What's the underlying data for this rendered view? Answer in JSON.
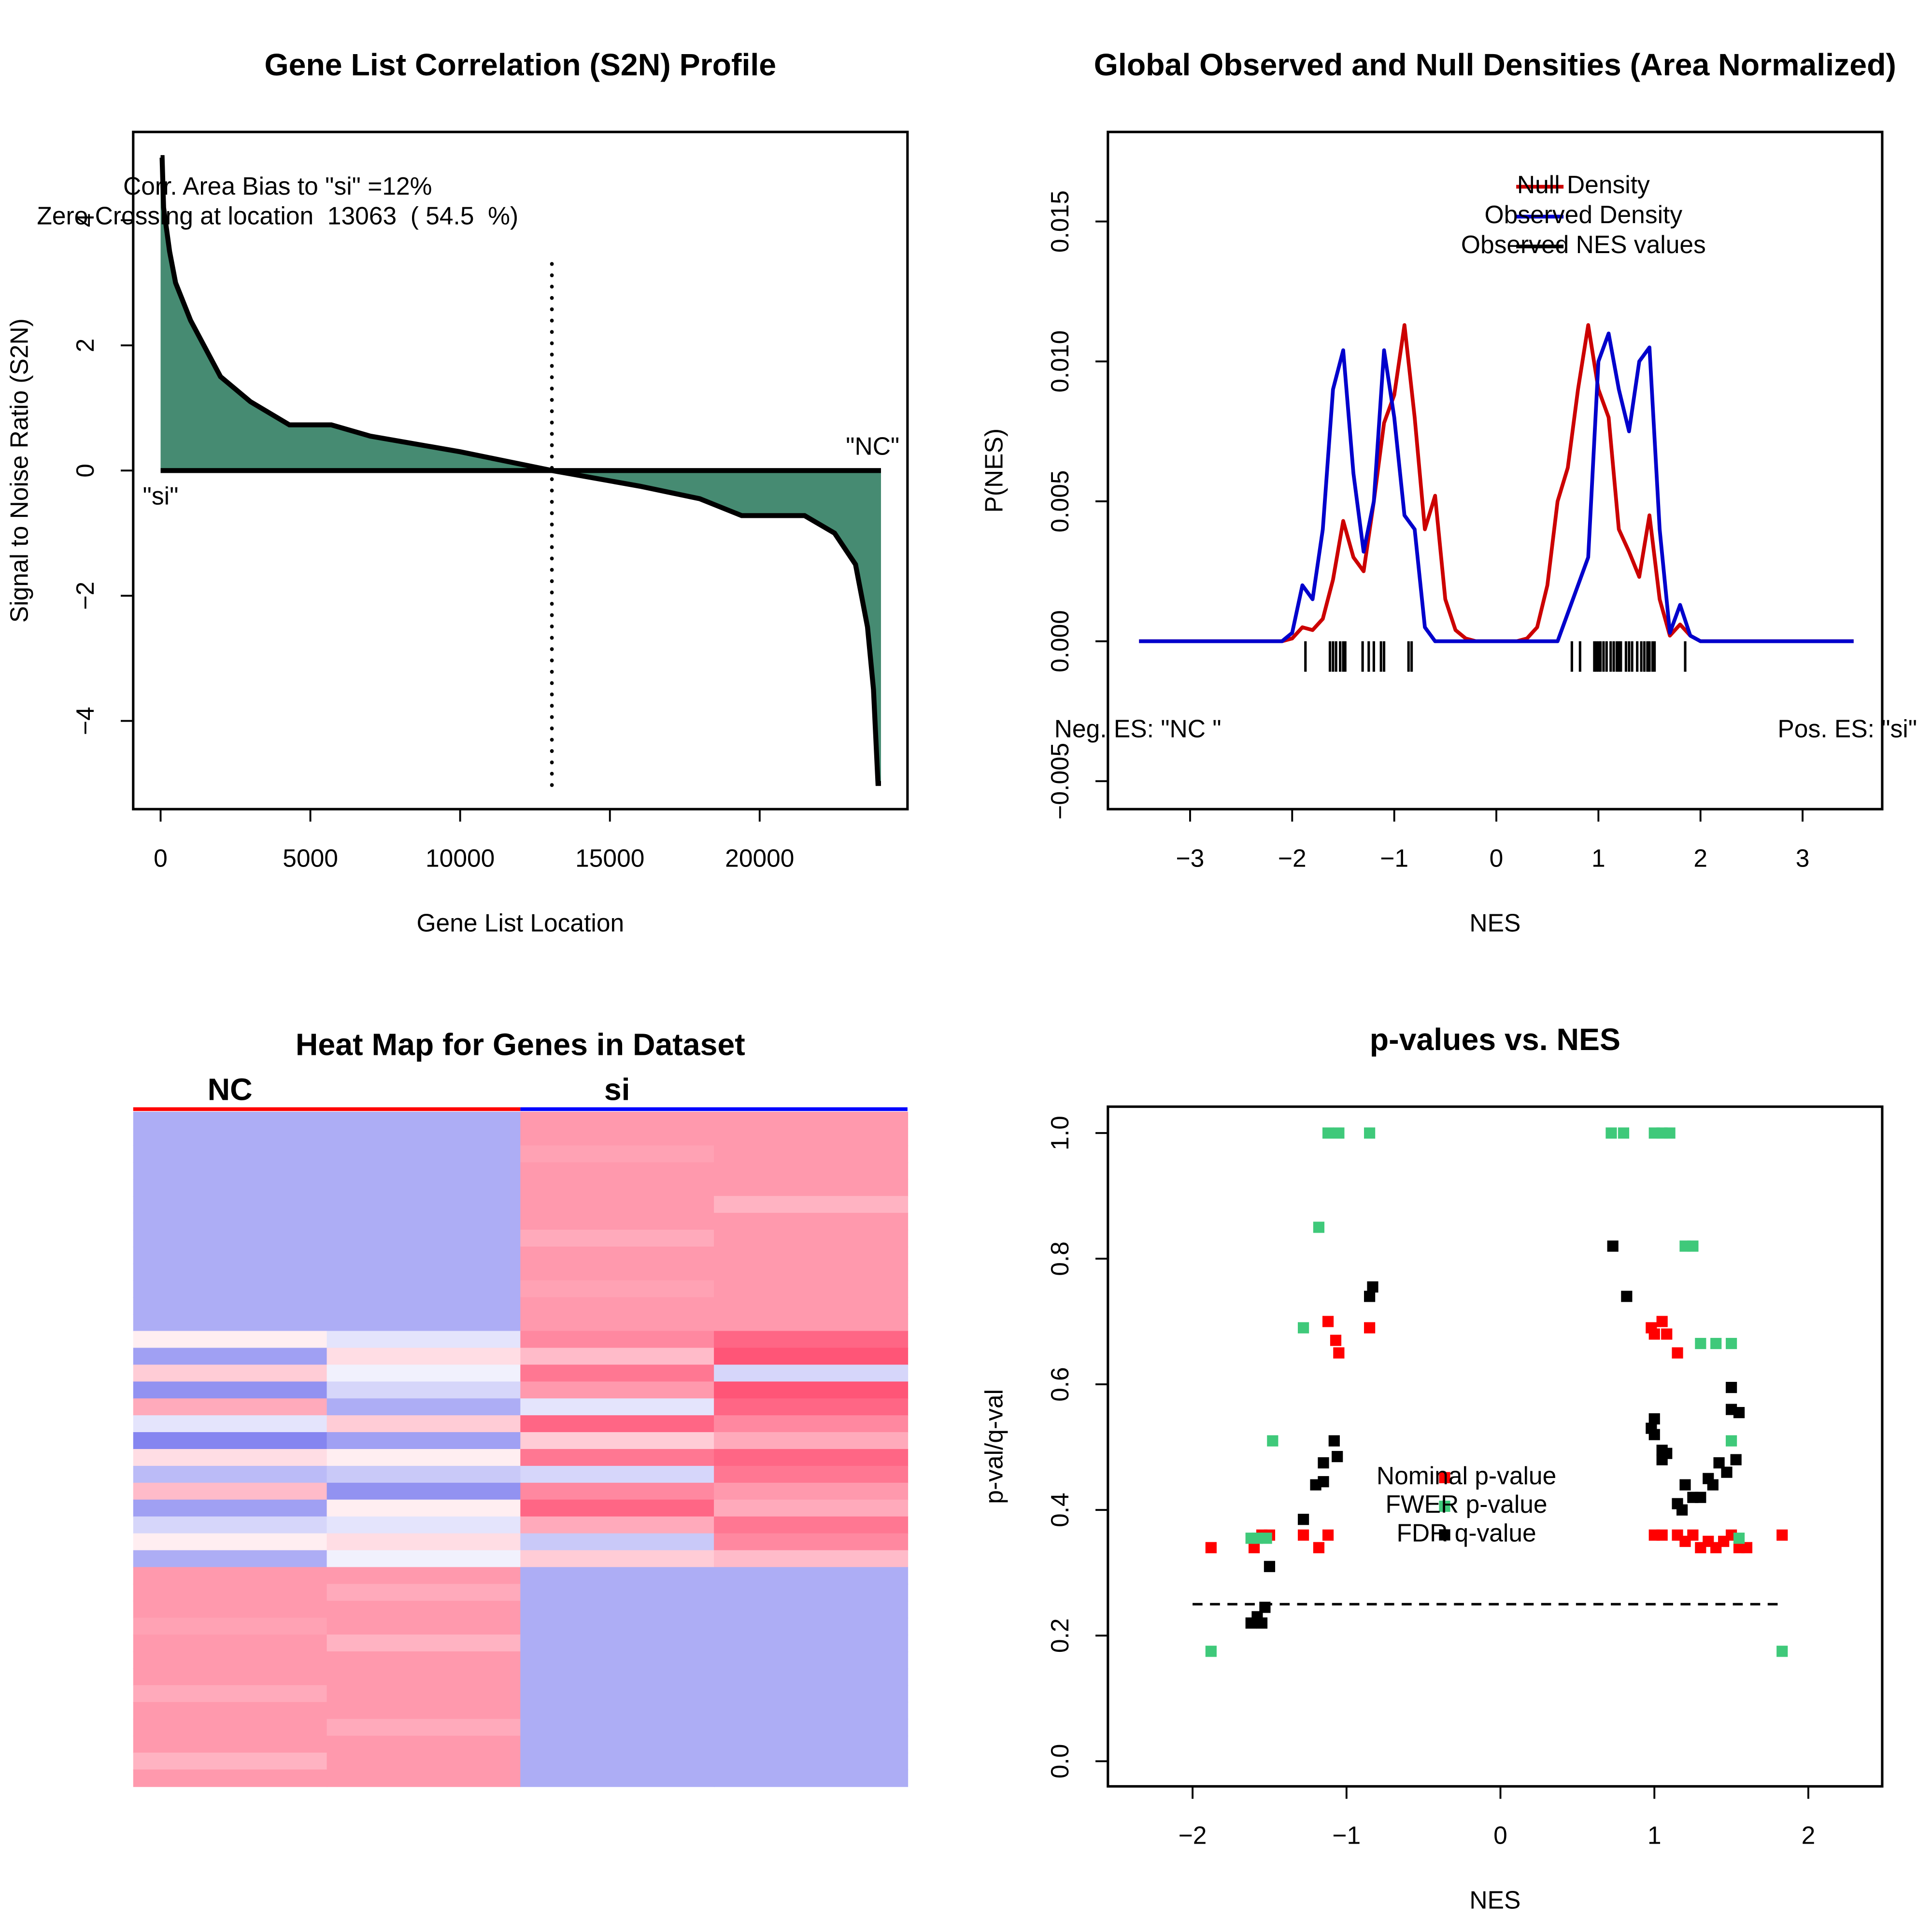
{
  "chart_data": [
    {
      "type": "area",
      "title": "Gene List Correlation (S2N) Profile",
      "x_label": "Gene List Location",
      "y_label": "Signal to Noise Ratio (S2N)",
      "annotations": [
        "Corr. Area Bias to \"si\" =12%",
        "Zero Crossing at location  13063  ( 54.5  %)",
        "\"si\"",
        "\"NC\""
      ],
      "x": [
        0,
        50,
        100,
        300,
        500,
        1000,
        2000,
        3000,
        4300,
        5700,
        7000,
        10000,
        13063,
        16000,
        18000,
        19400,
        21500,
        22500,
        23200,
        23600,
        23800,
        23950,
        24050
      ],
      "values": [
        5,
        5,
        4.2,
        3.5,
        3,
        2.4,
        1.5,
        1.1,
        0.73,
        0.73,
        0.55,
        0.3,
        0,
        -0.25,
        -0.45,
        -0.72,
        -0.72,
        -1,
        -1.5,
        -2.5,
        -3.5,
        -5,
        -5
      ],
      "color": "#468b72",
      "vline": 13063,
      "xlim": [
        -915,
        24935
      ],
      "xticks": [
        0,
        5000,
        10000,
        15000,
        20000
      ],
      "ylim": [
        -5.41,
        5.41
      ],
      "yticks": [
        {
          "value": -4,
          "label": "−4"
        },
        {
          "value": -2,
          "label": "−2"
        },
        0,
        2,
        4
      ]
    },
    {
      "type": "line",
      "title": "Global Observed and Null Densities (Area Normalized)",
      "x_label": "NES",
      "y_label": "P(NES)",
      "annotations": [
        "Neg. ES: \"NC \"",
        "Pos. ES: \"si\""
      ],
      "legend": "top-right",
      "x": [
        -3.5,
        -2.2,
        -2.1,
        -2,
        -1.9,
        -1.8,
        -1.7,
        -1.6,
        -1.5,
        -1.4,
        -1.3,
        -1.2,
        -1.1,
        -1,
        -0.9,
        -0.8,
        -0.7,
        -0.6,
        -0.5,
        -0.4,
        -0.3,
        -0.2,
        0.2,
        0.3,
        0.4,
        0.5,
        0.6,
        0.7,
        0.8,
        0.9,
        1,
        1.1,
        1.2,
        1.3,
        1.4,
        1.5,
        1.6,
        1.7,
        1.8,
        1.9,
        2,
        2.1,
        3.5
      ],
      "series": [
        {
          "name": "Null Density",
          "color": "#cc0000",
          "values": [
            0,
            0,
            0,
            0.0001,
            0.0005,
            0.0004,
            0.0008,
            0.0022,
            0.0043,
            0.003,
            0.0025,
            0.005,
            0.0078,
            0.0088,
            0.0113,
            0.008,
            0.004,
            0.0052,
            0.0015,
            0.0004,
            0.0001,
            0,
            0,
            0.0001,
            0.0005,
            0.002,
            0.005,
            0.0062,
            0.009,
            0.0113,
            0.009,
            0.008,
            0.004,
            0.0032,
            0.0023,
            0.0045,
            0.0015,
            0.0002,
            0.0006,
            0.0002,
            0,
            0,
            0
          ]
        },
        {
          "name": "Observed Density",
          "color": "#0000cc",
          "values": [
            0,
            0,
            0,
            0.0003,
            0.002,
            0.0015,
            0.004,
            0.009,
            0.0104,
            0.006,
            0.0032,
            0.005,
            0.0104,
            0.008,
            0.0045,
            0.004,
            0.0005,
            0,
            0,
            0,
            0,
            0,
            0,
            0,
            0,
            0,
            0,
            0.001,
            0.002,
            0.003,
            0.01,
            0.011,
            0.009,
            0.0075,
            0.01,
            0.0105,
            0.004,
            0.0003,
            0.0013,
            0.0002,
            0,
            0,
            0
          ]
        },
        {
          "name": "Observed NES values",
          "color": "#000000",
          "x_values": [
            -1.87,
            -1.63,
            -1.6,
            -1.57,
            -1.53,
            -1.5,
            -1.48,
            -1.31,
            -1.25,
            -1.2,
            -1.13,
            -1.1,
            -0.86,
            -0.83,
            0.74,
            0.82,
            0.96,
            0.98,
            1.0,
            1.02,
            1.05,
            1.08,
            1.12,
            1.15,
            1.18,
            1.2,
            1.22,
            1.27,
            1.3,
            1.33,
            1.38,
            1.42,
            1.45,
            1.48,
            1.5,
            1.53,
            1.55,
            1.85
          ]
        }
      ],
      "xlim": [
        -3.805,
        3.78
      ],
      "xticks": [
        {
          "value": -3,
          "label": "−3"
        },
        {
          "value": -2,
          "label": "−2"
        },
        {
          "value": -1,
          "label": "−1"
        },
        0,
        1,
        2,
        3
      ],
      "ylim": [
        -0.006,
        0.0182
      ],
      "yticks": [
        {
          "value": -0.005,
          "label": "−0.005"
        },
        {
          "value": 0,
          "label": "0.000"
        },
        {
          "value": 0.005,
          "label": "0.005"
        },
        {
          "value": 0.01,
          "label": "0.010"
        },
        {
          "value": 0.015,
          "label": "0.015"
        }
      ]
    },
    {
      "type": "heatmap",
      "title": "Heat Map for Genes in Dataset",
      "groups": [
        {
          "name": "NC",
          "color": "#ff0000"
        },
        {
          "name": "si",
          "color": "#0000ff"
        }
      ],
      "colorscale": [
        "#7777ee",
        "#ffffff",
        "#ff5577"
      ],
      "values": [
        [
          -0.6,
          -0.6,
          0.6,
          0.6
        ],
        [
          -0.6,
          -0.6,
          0.6,
          0.6
        ],
        [
          -0.6,
          -0.6,
          0.55,
          0.6
        ],
        [
          -0.6,
          -0.6,
          0.6,
          0.6
        ],
        [
          -0.6,
          -0.6,
          0.6,
          0.6
        ],
        [
          -0.6,
          -0.6,
          0.6,
          0.45
        ],
        [
          -0.6,
          -0.6,
          0.6,
          0.6
        ],
        [
          -0.6,
          -0.6,
          0.5,
          0.6
        ],
        [
          -0.6,
          -0.6,
          0.6,
          0.6
        ],
        [
          -0.6,
          -0.6,
          0.6,
          0.6
        ],
        [
          -0.6,
          -0.6,
          0.55,
          0.6
        ],
        [
          -0.6,
          -0.6,
          0.6,
          0.6
        ],
        [
          -0.6,
          -0.6,
          0.6,
          0.6
        ],
        [
          0.1,
          -0.2,
          0.7,
          0.9
        ],
        [
          -0.7,
          0.2,
          0.4,
          1.0
        ],
        [
          0.3,
          -0.1,
          0.8,
          -0.3
        ],
        [
          -0.8,
          -0.3,
          0.6,
          1.0
        ],
        [
          0.5,
          -0.6,
          -0.2,
          0.9
        ],
        [
          -0.2,
          0.3,
          0.9,
          0.7
        ],
        [
          -0.9,
          -0.7,
          0.3,
          0.5
        ],
        [
          0.2,
          0.1,
          0.8,
          0.9
        ],
        [
          -0.5,
          -0.4,
          -0.3,
          0.8
        ],
        [
          0.4,
          -0.8,
          0.7,
          0.6
        ],
        [
          -0.7,
          0.1,
          0.9,
          0.5
        ],
        [
          -0.3,
          -0.2,
          0.5,
          0.8
        ],
        [
          0.1,
          0.2,
          -0.4,
          0.7
        ],
        [
          -0.6,
          -0.1,
          0.3,
          0.4
        ],
        [
          0.6,
          0.6,
          -0.6,
          -0.6
        ],
        [
          0.6,
          0.5,
          -0.6,
          -0.6
        ],
        [
          0.6,
          0.6,
          -0.6,
          -0.6
        ],
        [
          0.55,
          0.6,
          -0.6,
          -0.6
        ],
        [
          0.6,
          0.45,
          -0.6,
          -0.6
        ],
        [
          0.6,
          0.6,
          -0.6,
          -0.6
        ],
        [
          0.6,
          0.6,
          -0.6,
          -0.6
        ],
        [
          0.5,
          0.6,
          -0.6,
          -0.6
        ],
        [
          0.6,
          0.6,
          -0.6,
          -0.6
        ],
        [
          0.6,
          0.5,
          -0.6,
          -0.6
        ],
        [
          0.6,
          0.6,
          -0.6,
          -0.6
        ],
        [
          0.45,
          0.6,
          -0.6,
          -0.6
        ],
        [
          0.6,
          0.6,
          -0.6,
          -0.6
        ]
      ]
    },
    {
      "type": "scatter",
      "title": "p-values vs. NES",
      "x_label": "NES",
      "y_label": "p-val/q-val",
      "legend": "center",
      "hlines": [
        0.25
      ],
      "series": [
        {
          "name": "Nominal p-value",
          "color": "#ff0000",
          "x": [
            -1.88,
            -1.6,
            -1.55,
            -1.5,
            -1.28,
            -1.18,
            -1.12,
            -1.12,
            -1.07,
            -1.05,
            -0.85,
            0.98,
            1.0,
            1.05,
            1.08,
            1.15,
            1.0,
            1.05,
            1.15,
            1.2,
            1.25,
            1.3,
            1.35,
            1.4,
            1.45,
            1.5,
            1.55,
            1.6,
            1.83
          ],
          "values": [
            0.34,
            0.34,
            0.36,
            0.36,
            0.36,
            0.34,
            0.36,
            0.7,
            0.67,
            0.65,
            0.69,
            0.69,
            0.68,
            0.7,
            0.68,
            0.65,
            0.36,
            0.36,
            0.36,
            0.35,
            0.36,
            0.34,
            0.35,
            0.34,
            0.35,
            0.36,
            0.34,
            0.34,
            0.36
          ]
        },
        {
          "name": "FWER p-value",
          "color": "#3fc97a",
          "x": [
            -1.88,
            -1.62,
            -1.58,
            -1.52,
            -1.48,
            -1.28,
            -1.18,
            -1.12,
            -1.05,
            -0.85,
            0.72,
            0.8,
            1.0,
            1.05,
            1.1,
            1.2,
            1.25,
            1.3,
            1.4,
            1.5,
            1.5,
            1.55,
            1.83
          ],
          "values": [
            0.175,
            0.355,
            0.355,
            0.355,
            0.51,
            0.69,
            0.85,
            1.0,
            1.0,
            1.0,
            1.0,
            1.0,
            1.0,
            1.0,
            1.0,
            0.82,
            0.82,
            0.665,
            0.665,
            0.665,
            0.51,
            0.355,
            0.175
          ]
        },
        {
          "name": "FDR q-value",
          "color": "#000000",
          "x": [
            -1.62,
            -1.58,
            -1.55,
            -1.53,
            -1.5,
            -1.28,
            -1.2,
            -1.15,
            -1.15,
            -1.08,
            -1.06,
            -0.85,
            -0.83,
            0.73,
            0.82,
            0.98,
            1.0,
            1.0,
            1.05,
            1.05,
            1.08,
            1.15,
            1.18,
            1.2,
            1.25,
            1.3,
            1.35,
            1.38,
            1.42,
            1.47,
            1.5,
            1.5,
            1.55,
            1.53
          ],
          "values": [
            0.22,
            0.23,
            0.22,
            0.245,
            0.31,
            0.385,
            0.44,
            0.445,
            0.475,
            0.51,
            0.485,
            0.74,
            0.755,
            0.82,
            0.74,
            0.53,
            0.545,
            0.52,
            0.48,
            0.495,
            0.49,
            0.41,
            0.4,
            0.44,
            0.42,
            0.42,
            0.45,
            0.44,
            0.475,
            0.46,
            0.595,
            0.56,
            0.555,
            0.48
          ]
        }
      ],
      "xlim": [
        -2.55,
        2.48
      ],
      "xticks": [
        {
          "value": -2,
          "label": "−2"
        },
        {
          "value": -1,
          "label": "−1"
        },
        0,
        1,
        2
      ],
      "ylim": [
        -0.04,
        1.042
      ],
      "yticks": [
        {
          "value": 0,
          "label": "0.0"
        },
        0.2,
        0.4,
        0.6,
        0.8,
        {
          "value": 1,
          "label": "1.0"
        }
      ]
    }
  ]
}
